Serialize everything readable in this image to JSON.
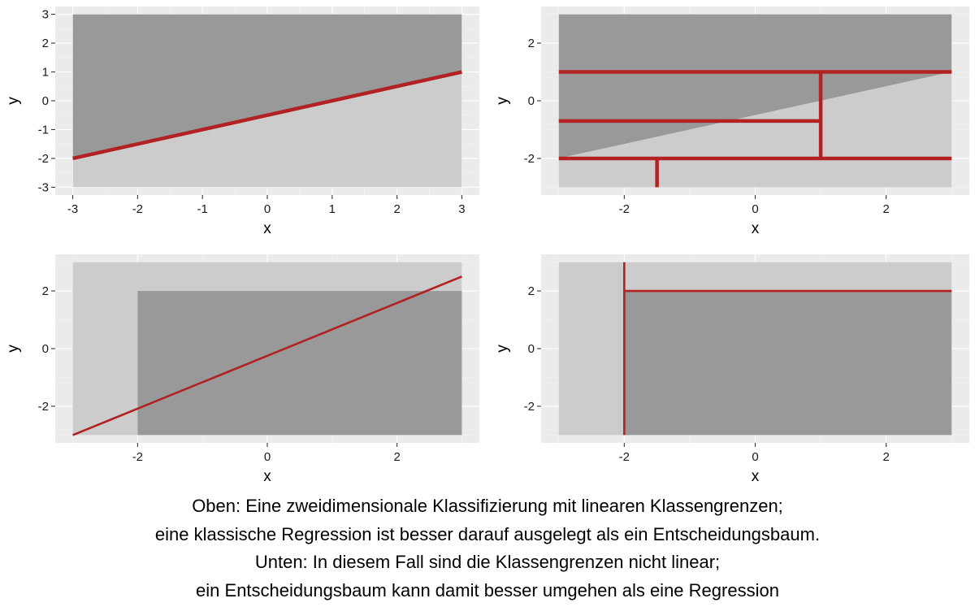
{
  "chart_data": [
    {
      "type": "area",
      "xlabel": "x",
      "ylabel": "y",
      "xlim": [
        -3,
        3
      ],
      "ylim": [
        -3,
        3
      ],
      "x_ticks": [
        -3,
        -2,
        -1,
        0,
        1,
        2,
        3
      ],
      "y_ticks": [
        -3,
        -2,
        -1,
        0,
        1,
        2,
        3
      ],
      "x_tick_labels": [
        "-3",
        "-2",
        "-1",
        "0",
        "1",
        "2",
        "3"
      ],
      "y_tick_labels": [
        "-3",
        "-2",
        "-1",
        "0",
        "1",
        "2",
        "3"
      ],
      "grid": true,
      "regions": [
        {
          "class": "dark",
          "polygon": [
            [
              -3,
              -2
            ],
            [
              3,
              1
            ],
            [
              3,
              3
            ],
            [
              -3,
              3
            ]
          ]
        },
        {
          "class": "light",
          "polygon": [
            [
              -3,
              -3
            ],
            [
              3,
              -3
            ],
            [
              3,
              1
            ],
            [
              -3,
              -2
            ]
          ]
        }
      ],
      "boundary_lines": [
        {
          "x": [
            -3,
            3
          ],
          "y": [
            -2,
            1
          ]
        }
      ]
    },
    {
      "type": "area",
      "xlabel": "x",
      "ylabel": "y",
      "xlim": [
        -3,
        3
      ],
      "ylim": [
        -3,
        3
      ],
      "x_ticks": [
        -2,
        0,
        2
      ],
      "y_ticks": [
        -2,
        0,
        2
      ],
      "x_tick_labels": [
        "-2",
        "0",
        "2"
      ],
      "y_tick_labels": [
        "-2",
        "0",
        "2"
      ],
      "grid": true,
      "regions": [
        {
          "class": "dark",
          "polygon": [
            [
              -3,
              -2
            ],
            [
              3,
              1
            ],
            [
              3,
              3
            ],
            [
              -3,
              3
            ]
          ]
        },
        {
          "class": "light",
          "polygon": [
            [
              -3,
              -3
            ],
            [
              3,
              -3
            ],
            [
              3,
              1
            ],
            [
              -3,
              -2
            ]
          ]
        }
      ],
      "boundary_lines": [
        {
          "x": [
            -3,
            3
          ],
          "y": [
            1,
            1
          ]
        },
        {
          "x": [
            -3,
            3
          ],
          "y": [
            -2,
            -2
          ]
        },
        {
          "x": [
            -3,
            1
          ],
          "y": [
            -0.7,
            -0.7
          ]
        },
        {
          "x": [
            1,
            1
          ],
          "y": [
            -2,
            1
          ]
        },
        {
          "x": [
            -1.5,
            -1.5
          ],
          "y": [
            -3,
            -2
          ]
        }
      ]
    },
    {
      "type": "area",
      "xlabel": "x",
      "ylabel": "y",
      "xlim": [
        -3,
        3
      ],
      "ylim": [
        -3,
        3
      ],
      "x_ticks": [
        -2,
        0,
        2
      ],
      "y_ticks": [
        -2,
        0,
        2
      ],
      "x_tick_labels": [
        "-2",
        "0",
        "2"
      ],
      "y_tick_labels": [
        "-2",
        "0",
        "2"
      ],
      "grid": true,
      "regions": [
        {
          "class": "light",
          "polygon": [
            [
              -3,
              -3
            ],
            [
              3,
              -3
            ],
            [
              3,
              3
            ],
            [
              -3,
              3
            ]
          ]
        },
        {
          "class": "dark",
          "polygon": [
            [
              -2,
              -3
            ],
            [
              3,
              -3
            ],
            [
              3,
              2
            ],
            [
              -2,
              2
            ]
          ]
        }
      ],
      "boundary_lines": [
        {
          "x": [
            -3,
            3
          ],
          "y": [
            -3,
            2.5
          ]
        }
      ]
    },
    {
      "type": "area",
      "xlabel": "x",
      "ylabel": "y",
      "xlim": [
        -3,
        3
      ],
      "ylim": [
        -3,
        3
      ],
      "x_ticks": [
        -2,
        0,
        2
      ],
      "y_ticks": [
        -2,
        0,
        2
      ],
      "x_tick_labels": [
        "-2",
        "0",
        "2"
      ],
      "y_tick_labels": [
        "-2",
        "0",
        "2"
      ],
      "grid": true,
      "regions": [
        {
          "class": "light",
          "polygon": [
            [
              -3,
              -3
            ],
            [
              3,
              -3
            ],
            [
              3,
              3
            ],
            [
              -3,
              3
            ]
          ]
        },
        {
          "class": "dark",
          "polygon": [
            [
              -2,
              -3
            ],
            [
              3,
              -3
            ],
            [
              3,
              2
            ],
            [
              -2,
              2
            ]
          ]
        }
      ],
      "boundary_lines": [
        {
          "x": [
            -2,
            -2
          ],
          "y": [
            -3,
            3
          ]
        },
        {
          "x": [
            -2,
            3
          ],
          "y": [
            2,
            2
          ]
        }
      ]
    }
  ],
  "caption": {
    "lines": [
      "Oben: Eine zweidimensionale Klassifizierung mit linearen Klassengrenzen;",
      "eine klassische Regression ist besser darauf ausgelegt als ein Entscheidungsbaum.",
      "Unten: In diesem Fall sind die Klassengrenzen nicht linear;",
      "ein Entscheidungsbaum kann damit besser umgehen als eine Regression"
    ]
  },
  "colors": {
    "panel_background": "#ebebeb",
    "grid_major": "#ffffff",
    "grid_minor": "#f3f3f3",
    "region_dark": "#999999",
    "region_light": "#cccccc",
    "boundary_line": "#b22222",
    "tick_text": "#1a1a1a",
    "tick_mark": "#333333"
  }
}
